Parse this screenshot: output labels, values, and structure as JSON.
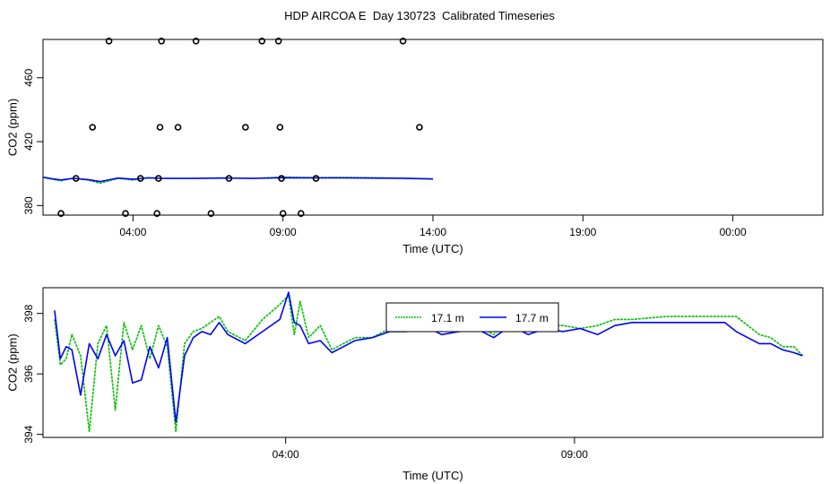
{
  "title": "HDP AIRCOA E  Day 130723  Calibrated Timeseries",
  "chart_data": [
    {
      "type": "scatter",
      "xlabel": "Time (UTC)",
      "ylabel": "CO2 (ppm)",
      "xlim": [
        0,
        26
      ],
      "ylim": [
        374,
        484
      ],
      "x_ticks": [
        3,
        8,
        13,
        18,
        23
      ],
      "x_tick_labels": [
        "04:00",
        "09:00",
        "14:00",
        "19:00",
        "00:00"
      ],
      "y_ticks": [
        380,
        420,
        460
      ],
      "grid": false,
      "points": [
        {
          "x": 0.6,
          "y": 375
        },
        {
          "x": 1.1,
          "y": 397
        },
        {
          "x": 1.65,
          "y": 429
        },
        {
          "x": 2.2,
          "y": 483
        },
        {
          "x": 2.75,
          "y": 375
        },
        {
          "x": 3.25,
          "y": 397
        },
        {
          "x": 3.8,
          "y": 375
        },
        {
          "x": 3.85,
          "y": 397
        },
        {
          "x": 3.9,
          "y": 429
        },
        {
          "x": 3.95,
          "y": 483
        },
        {
          "x": 4.5,
          "y": 429
        },
        {
          "x": 5.1,
          "y": 483
        },
        {
          "x": 5.6,
          "y": 375
        },
        {
          "x": 6.2,
          "y": 397
        },
        {
          "x": 6.75,
          "y": 429
        },
        {
          "x": 7.3,
          "y": 483
        },
        {
          "x": 7.85,
          "y": 483
        },
        {
          "x": 7.9,
          "y": 429
        },
        {
          "x": 7.95,
          "y": 397
        },
        {
          "x": 8.0,
          "y": 375
        },
        {
          "x": 8.6,
          "y": 375
        },
        {
          "x": 9.1,
          "y": 397
        },
        {
          "x": 12.0,
          "y": 483
        },
        {
          "x": 12.55,
          "y": 429
        }
      ],
      "series": [
        {
          "color": "#00c000",
          "x": [
            0,
            0.3,
            0.6,
            1.0,
            1.5,
            1.9,
            2.5,
            3.0,
            3.5,
            4.0,
            5.0,
            6.0,
            7.0,
            8.0,
            9.0,
            10.0,
            11.0,
            12.0,
            13.0
          ],
          "values": [
            397.5,
            396.5,
            395.5,
            397.2,
            396.0,
            394.0,
            397.0,
            396.0,
            397.5,
            397.0,
            397.0,
            397.3,
            397.0,
            397.8,
            397.5,
            397.6,
            397.4,
            397.2,
            396.7
          ]
        },
        {
          "color": "#0000ff",
          "x": [
            0,
            0.3,
            0.6,
            1.0,
            1.5,
            1.9,
            2.5,
            3.0,
            3.5,
            4.0,
            5.0,
            6.0,
            7.0,
            8.0,
            9.0,
            10.0,
            11.0,
            12.0,
            13.0
          ],
          "values": [
            397.8,
            396.8,
            396.0,
            397.0,
            396.2,
            395.0,
            397.2,
            396.5,
            397.3,
            397.0,
            397.0,
            397.2,
            397.0,
            397.4,
            397.3,
            397.3,
            397.2,
            397.0,
            396.6
          ]
        }
      ]
    },
    {
      "type": "line",
      "xlabel": "Time (UTC)",
      "ylabel": "CO2 (ppm)",
      "xlim": [
        -0.2,
        13.3
      ],
      "ylim": [
        393.9,
        398.85
      ],
      "x_ticks": [
        4,
        9
      ],
      "x_tick_labels": [
        "04:00",
        "09:00"
      ],
      "y_ticks": [
        394,
        396,
        398
      ],
      "grid": false,
      "legend": {
        "position": "top-center",
        "entries": [
          "17.1 m",
          "17.7 m"
        ]
      },
      "series": [
        {
          "name": "17.1 m",
          "color": "#00c000",
          "x": [
            0.0,
            0.1,
            0.2,
            0.3,
            0.45,
            0.6,
            0.75,
            0.9,
            1.05,
            1.2,
            1.35,
            1.5,
            1.65,
            1.8,
            1.95,
            2.1,
            2.25,
            2.4,
            2.55,
            2.7,
            2.85,
            3.0,
            3.3,
            3.6,
            3.9,
            4.05,
            4.15,
            4.25,
            4.4,
            4.6,
            4.8,
            5.0,
            5.2,
            5.5,
            5.8,
            6.1,
            6.4,
            6.7,
            7.0,
            7.3,
            7.6,
            7.9,
            8.2,
            8.5,
            8.8,
            9.1,
            9.4,
            9.7,
            10.0,
            10.6,
            11.2,
            11.6,
            11.8,
            12.0,
            12.2,
            12.4,
            12.6,
            12.8,
            12.95
          ],
          "values": [
            397.8,
            396.3,
            396.5,
            397.3,
            396.6,
            394.1,
            397.0,
            397.6,
            394.8,
            397.7,
            396.8,
            397.6,
            396.5,
            397.6,
            396.9,
            394.1,
            397.0,
            397.4,
            397.5,
            397.7,
            397.9,
            397.4,
            397.1,
            397.8,
            398.3,
            398.6,
            397.3,
            398.4,
            397.2,
            397.6,
            396.8,
            397.0,
            397.2,
            397.2,
            397.5,
            397.6,
            397.9,
            397.4,
            397.5,
            397.6,
            397.3,
            397.9,
            397.4,
            397.6,
            397.6,
            397.5,
            397.6,
            397.8,
            397.8,
            397.9,
            397.9,
            397.9,
            397.9,
            397.6,
            397.3,
            397.2,
            396.9,
            396.9,
            396.6
          ]
        },
        {
          "name": "17.7 m",
          "color": "#0000ff",
          "x": [
            0.0,
            0.1,
            0.2,
            0.3,
            0.45,
            0.6,
            0.75,
            0.9,
            1.05,
            1.2,
            1.35,
            1.5,
            1.65,
            1.8,
            1.95,
            2.1,
            2.25,
            2.4,
            2.55,
            2.7,
            2.85,
            3.0,
            3.3,
            3.6,
            3.9,
            4.05,
            4.15,
            4.25,
            4.4,
            4.6,
            4.8,
            5.0,
            5.2,
            5.5,
            5.8,
            6.1,
            6.4,
            6.7,
            7.0,
            7.3,
            7.6,
            7.9,
            8.2,
            8.5,
            8.8,
            9.1,
            9.4,
            9.7,
            10.0,
            10.6,
            11.2,
            11.6,
            11.8,
            12.0,
            12.2,
            12.4,
            12.6,
            12.8,
            12.95
          ],
          "values": [
            398.1,
            396.5,
            396.9,
            396.8,
            395.3,
            397.0,
            396.5,
            397.3,
            396.6,
            397.1,
            395.7,
            395.8,
            396.9,
            396.2,
            397.2,
            394.4,
            396.6,
            397.2,
            397.4,
            397.3,
            397.7,
            397.3,
            397.0,
            397.4,
            397.8,
            398.7,
            397.7,
            397.6,
            397.0,
            397.1,
            396.7,
            396.9,
            397.1,
            397.2,
            397.4,
            397.4,
            397.6,
            397.3,
            397.4,
            397.5,
            397.2,
            397.6,
            397.3,
            397.5,
            397.4,
            397.5,
            397.3,
            397.6,
            397.7,
            397.7,
            397.7,
            397.7,
            397.4,
            397.2,
            397.0,
            397.0,
            396.8,
            396.7,
            396.6
          ]
        }
      ]
    }
  ]
}
